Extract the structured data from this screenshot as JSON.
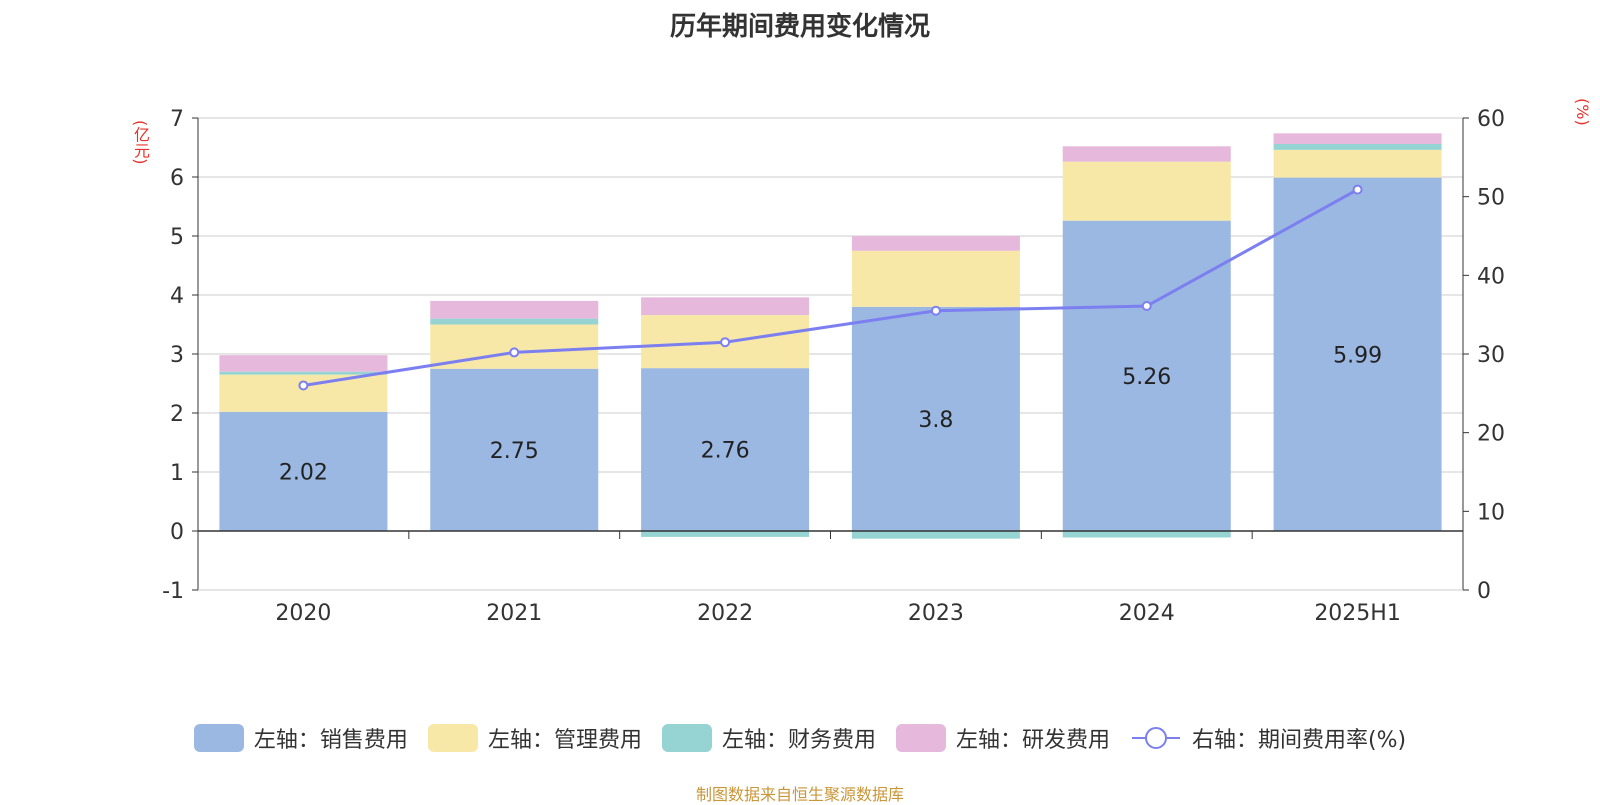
{
  "chart_data": {
    "type": "bar",
    "title": "历年期间费用变化情况",
    "left_unit": "(亿元)",
    "right_unit": "(%)",
    "categories": [
      "2020",
      "2021",
      "2022",
      "2023",
      "2024",
      "2025H1"
    ],
    "ylim_left": [
      -1,
      7
    ],
    "yticks_left": [
      -1,
      0,
      1,
      2,
      3,
      4,
      5,
      6,
      7
    ],
    "ylim_right": [
      0,
      60
    ],
    "yticks_right": [
      0,
      10,
      20,
      30,
      40,
      50,
      60
    ],
    "grid": true,
    "legend_position": "bottom",
    "series": [
      {
        "name": "左轴：销售费用",
        "type": "bar",
        "axis": "left",
        "color": "#9bb8e2",
        "values": [
          2.02,
          2.75,
          2.76,
          3.8,
          5.26,
          5.99
        ],
        "show_labels": true
      },
      {
        "name": "左轴：管理费用",
        "type": "bar",
        "axis": "left",
        "color": "#f8e8a8",
        "values": [
          0.63,
          0.75,
          0.9,
          0.95,
          1.0,
          0.47
        ]
      },
      {
        "name": "左轴：财务费用",
        "type": "bar",
        "axis": "left",
        "color": "#96d4d4",
        "values": [
          0.05,
          0.1,
          -0.1,
          -0.13,
          -0.11,
          0.1
        ]
      },
      {
        "name": "左轴：研发费用",
        "type": "bar",
        "axis": "left",
        "color": "#e6b8dc",
        "values": [
          0.28,
          0.3,
          0.3,
          0.25,
          0.26,
          0.18
        ]
      },
      {
        "name": "右轴：期间费用率(%)",
        "type": "line",
        "axis": "right",
        "color": "#7b7ff0",
        "values": [
          26,
          30.2,
          31.5,
          35.5,
          36.1,
          50.9
        ]
      }
    ]
  },
  "source_text": "制图数据来自恒生聚源数据库"
}
